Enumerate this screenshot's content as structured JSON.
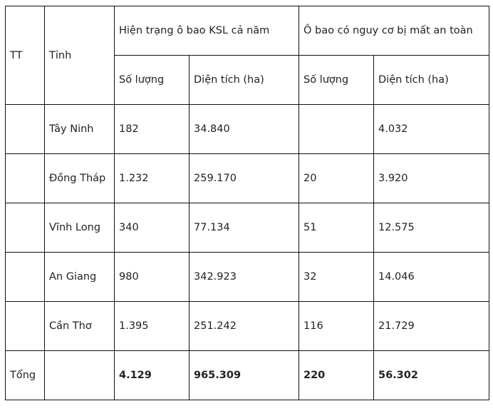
{
  "header": {
    "tt": "TT",
    "province": "Tỉnh",
    "group1": "Hiện trạng ô bao KSL cả năm",
    "group2": "Ô bao có nguy cơ bị mất an toàn",
    "count": "Số lượng",
    "area": "Diện tích (ha)"
  },
  "rows": [
    {
      "tt": "",
      "province": "Tây Ninh",
      "count1": "182",
      "area1": "34.840",
      "count2": "",
      "area2": "4.032"
    },
    {
      "tt": "",
      "province": "Đồng Tháp",
      "count1": "1.232",
      "area1": "259.170",
      "count2": "20",
      "area2": "3.920"
    },
    {
      "tt": "",
      "province": "Vĩnh Long",
      "count1": "340",
      "area1": "77.134",
      "count2": "51",
      "area2": "12.575"
    },
    {
      "tt": "",
      "province": "An Giang",
      "count1": "980",
      "area1": "342.923",
      "count2": "32",
      "area2": "14.046"
    },
    {
      "tt": "",
      "province": "Cần Thơ",
      "count1": "1.395",
      "area1": "251.242",
      "count2": "116",
      "area2": "21.729"
    }
  ],
  "total": {
    "label": "Tổng",
    "province": "",
    "count1": "4.129",
    "area1": "965.309",
    "count2": "220",
    "area2": "56.302"
  }
}
